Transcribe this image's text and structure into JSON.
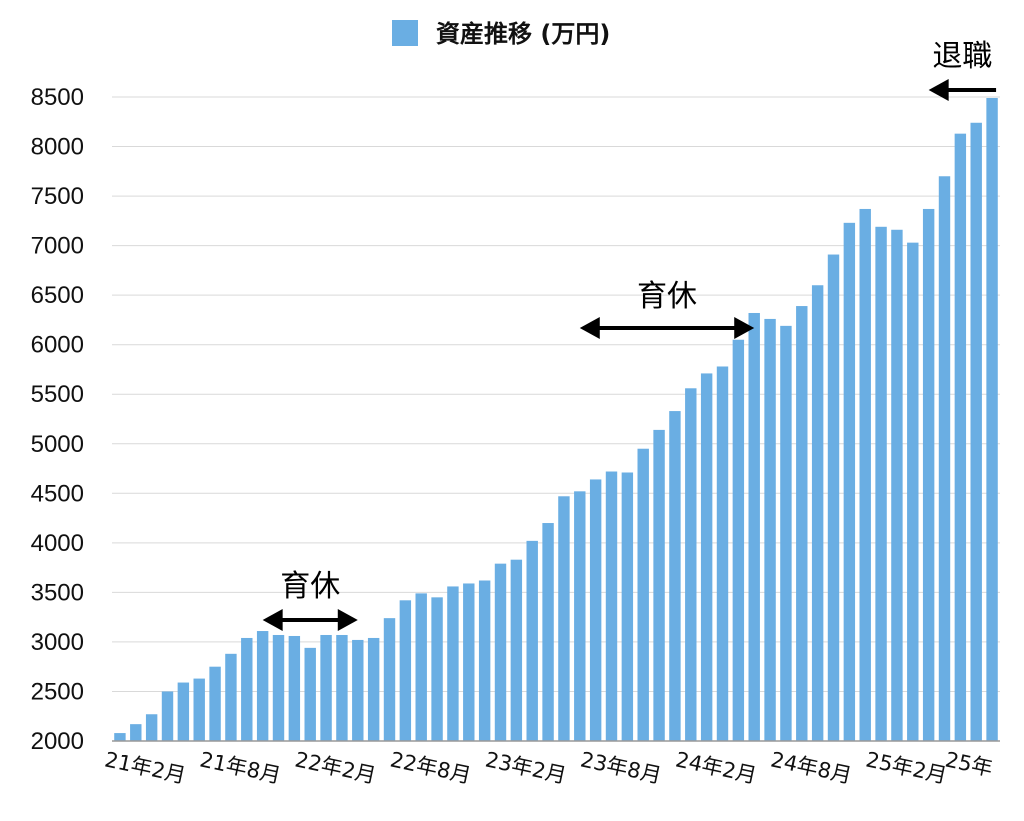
{
  "chart_data": {
    "type": "bar",
    "title": "",
    "xlabel": "",
    "ylabel": "",
    "legend": {
      "position": "top",
      "entries": [
        "資産推移 (万円)"
      ]
    },
    "series": [
      {
        "name": "資産推移 (万円)",
        "color": "#6aaee3",
        "values": [
          2080,
          2170,
          2270,
          2500,
          2590,
          2630,
          2750,
          2880,
          3040,
          3110,
          3070,
          3060,
          2940,
          3070,
          3070,
          3020,
          3040,
          3240,
          3420,
          3490,
          3450,
          3560,
          3590,
          3620,
          3790,
          3830,
          4020,
          4200,
          4470,
          4520,
          4640,
          4720,
          4710,
          4950,
          5140,
          5330,
          5560,
          5710,
          5780,
          6050,
          6320,
          6260,
          6190,
          6390,
          6600,
          6910,
          7230,
          7370,
          7190,
          7160,
          7030,
          7370,
          7700,
          8130,
          8240,
          8490
        ]
      }
    ],
    "x_tick_labels": [
      "21年2月",
      "21年8月",
      "22年2月",
      "22年8月",
      "23年2月",
      "23年8月",
      "24年2月",
      "24年8月",
      "25年2月",
      "25年"
    ],
    "y_ticks": [
      2000,
      2500,
      3000,
      3500,
      4000,
      4500,
      5000,
      5500,
      6000,
      6500,
      7000,
      7500,
      8000,
      8500
    ],
    "ylim": [
      2000,
      8500
    ],
    "grid": true,
    "annotations": [
      {
        "text": "育休",
        "from_index": 9,
        "to_index": 15
      },
      {
        "text": "育休",
        "from_index": 29,
        "to_index": 40
      },
      {
        "text": "退職",
        "from_index": 55,
        "to_index": 51
      }
    ]
  }
}
